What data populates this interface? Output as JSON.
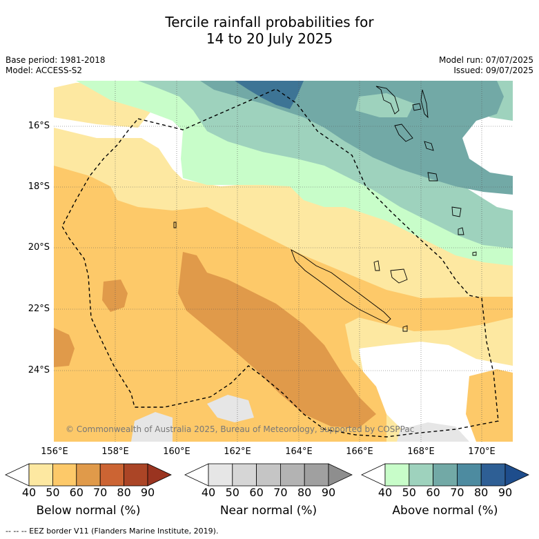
{
  "title_line1": "Tercile rainfall probabilities for",
  "title_line2": "14 to 20 July 2025",
  "meta": {
    "base_period": "Base period: 1981-2018",
    "model": "Model: ACCESS-S2",
    "model_run": "Model run: 07/07/2025",
    "issued": "Issued: 09/07/2025"
  },
  "map": {
    "lon_labels": [
      "156°E",
      "158°E",
      "160°E",
      "162°E",
      "164°E",
      "166°E",
      "168°E",
      "170°E"
    ],
    "lat_labels": [
      "16°S",
      "18°S",
      "20°S",
      "22°S",
      "24°S"
    ],
    "copyright": "© Commonwealth of Australia 2025, Bureau of Meteorology, supported by COSPPac",
    "colors": {
      "below_50": "#fde8a1",
      "below_60": "#fdc969",
      "below_70": "#e09a4a",
      "near_50": "#e6e6e6",
      "above_50": "#c8fdc9",
      "above_60": "#9ed2bd",
      "above_70": "#72a9a6",
      "above_80": "#3d7495"
    }
  },
  "colorbars": [
    {
      "label": "Below normal (%)",
      "ticks": [
        "40",
        "50",
        "60",
        "70",
        "80",
        "90"
      ],
      "colors": [
        "#ffffff",
        "#fde8a1",
        "#fdc969",
        "#e09a4a",
        "#cc6433",
        "#ab4526",
        "#9a3420"
      ]
    },
    {
      "label": "Near normal (%)",
      "ticks": [
        "40",
        "50",
        "60",
        "70",
        "80",
        "90"
      ],
      "colors": [
        "#ffffff",
        "#e6e6e6",
        "#d6d6d6",
        "#c5c5c5",
        "#b3b3b3",
        "#a0a0a0",
        "#8e8e8e"
      ]
    },
    {
      "label": "Above normal (%)",
      "ticks": [
        "40",
        "50",
        "60",
        "70",
        "80",
        "90"
      ],
      "colors": [
        "#ffffff",
        "#c8fdc9",
        "#9ed2bd",
        "#72a9a6",
        "#4d8ba0",
        "#2e5f95",
        "#1e4d8c"
      ]
    }
  ],
  "footer": "-- -- -- EEZ border V11 (Flanders Marine Institute, 2019)."
}
